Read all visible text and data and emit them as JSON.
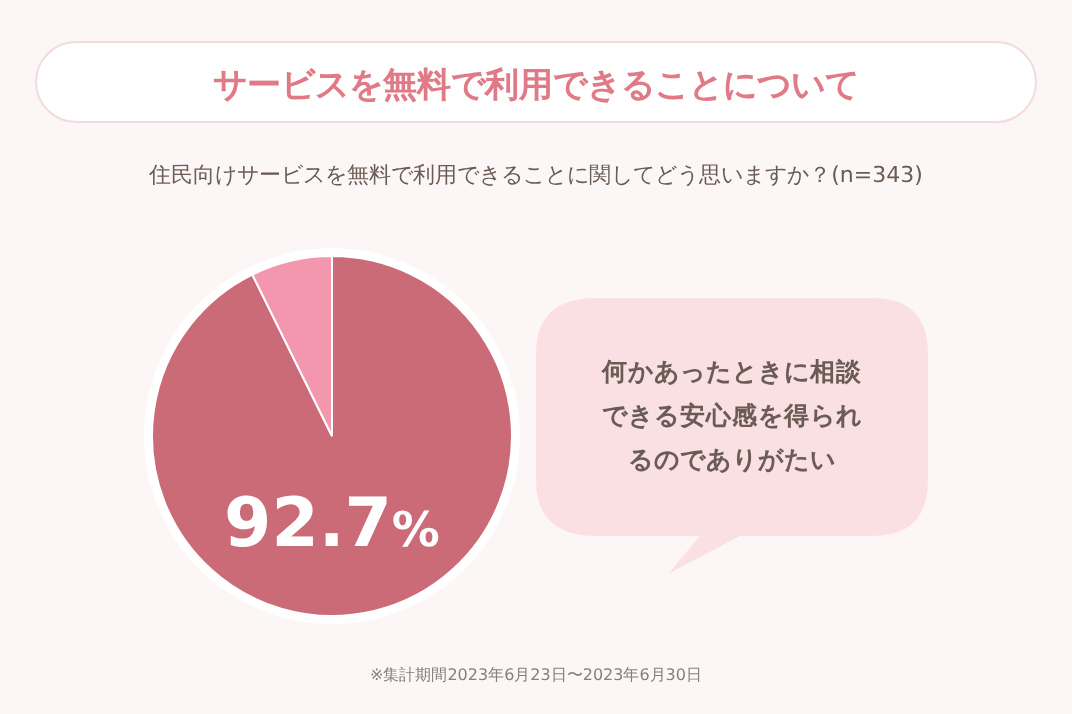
{
  "chart_data": {
    "type": "pie",
    "title": "サービスを無料で利用できることについて",
    "subtitle": "住民向けサービスを無料で利用できることに関してどう思いますか？(n=343)",
    "categories": [
      null,
      null
    ],
    "values": [
      92.7,
      7.3
    ],
    "colors": [
      "#cc6b78",
      "#f297ad"
    ],
    "value_labels": [
      "92.7%",
      null
    ],
    "annotations": [
      "何かあったときに相談できる安心感を得られるのでありがたい",
      "※集計期間2023年6月23日〜2023年6月30日"
    ]
  }
}
